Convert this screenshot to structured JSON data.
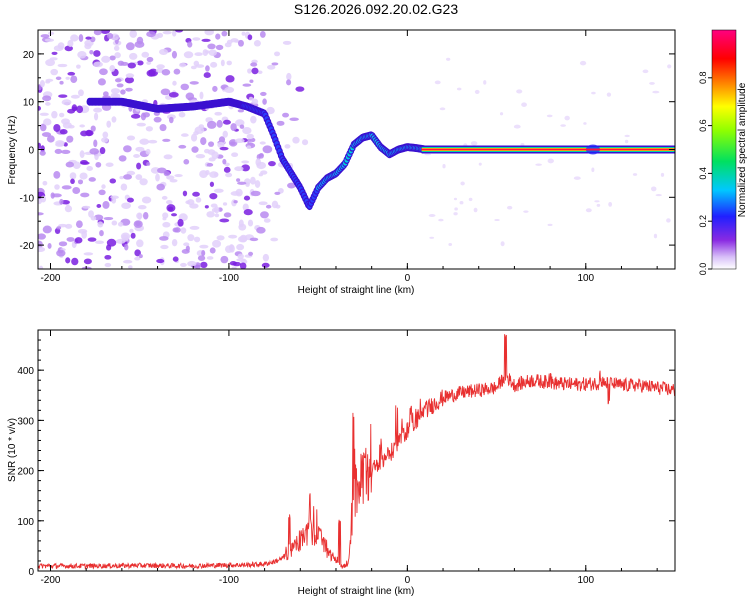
{
  "title": "S126.2026.092.20.02.G23",
  "chart_data": [
    {
      "type": "heatmap",
      "xlabel": "Height of straight line (km)",
      "ylabel": "Frequency (Hz)",
      "xlim": [
        -207,
        150
      ],
      "ylim": [
        -25,
        25
      ],
      "xticks": [
        -200,
        -100,
        0,
        100
      ],
      "yticks": [
        -20,
        -10,
        0,
        10,
        20
      ],
      "colorbar": {
        "label": "Normalized spectral amplitude",
        "range": [
          0,
          1
        ],
        "ticks": [
          "0.0",
          "0.2",
          "0.4",
          "0.6",
          "0.8"
        ],
        "colormap": [
          "#ffffff",
          "#c8a8f0",
          "#8a2be2",
          "#2020ff",
          "#00c8ff",
          "#00e060",
          "#90ff00",
          "#ffff00",
          "#ff8000",
          "#ff0000",
          "#ff0080"
        ]
      },
      "ridge": {
        "x": [
          -178,
          -160,
          -140,
          -120,
          -100,
          -90,
          -80,
          -75,
          -70,
          -65,
          -60,
          -55,
          -50,
          -45,
          -40,
          -35,
          -30,
          -25,
          -20,
          -15,
          -10,
          -5,
          0,
          5,
          10,
          60,
          100,
          150
        ],
        "freq": [
          10,
          10,
          8.5,
          9,
          10,
          9,
          7.5,
          3,
          -2,
          -5,
          -8,
          -12,
          -8,
          -6,
          -5,
          -3,
          1,
          2.5,
          3,
          0.5,
          -1,
          0,
          0.5,
          0.3,
          0,
          0,
          0,
          0
        ]
      },
      "tone_line": {
        "x_start": 8,
        "x_end": 150,
        "freq": 0
      }
    },
    {
      "type": "line",
      "xlabel": "Height of straight line (km)",
      "ylabel": "SNR (10 * v/v)",
      "xlim": [
        -207,
        150
      ],
      "ylim": [
        0,
        480
      ],
      "xticks": [
        -200,
        -100,
        0,
        100
      ],
      "yticks": [
        0,
        100,
        200,
        300,
        400
      ],
      "series": [
        {
          "name": "SNR",
          "color": "#e83030",
          "x": [
            -207,
            -180,
            -150,
            -120,
            -100,
            -90,
            -80,
            -75,
            -70,
            -65,
            -60,
            -55,
            -50,
            -45,
            -40,
            -36,
            -33,
            -31,
            -30,
            -28,
            -25,
            -20,
            -15,
            -10,
            -5,
            0,
            5,
            10,
            20,
            30,
            40,
            50,
            55,
            60,
            70,
            80,
            90,
            100,
            110,
            120,
            130,
            140,
            150
          ],
          "y": [
            10,
            10,
            11,
            10,
            12,
            12,
            14,
            18,
            25,
            40,
            60,
            80,
            70,
            40,
            20,
            8,
            15,
            90,
            150,
            170,
            180,
            200,
            215,
            230,
            260,
            280,
            300,
            320,
            345,
            355,
            360,
            365,
            390,
            370,
            380,
            375,
            372,
            372,
            375,
            370,
            370,
            365,
            360
          ],
          "spikes": [
            [
              -66,
              115
            ],
            [
              -55,
              155
            ],
            [
              -49,
              95
            ],
            [
              -38,
              105
            ],
            [
              -30,
              315
            ],
            [
              -24,
              235
            ],
            [
              -15,
              265
            ],
            [
              -6,
              340
            ],
            [
              2,
              330
            ],
            [
              55,
              475
            ],
            [
              80,
              395
            ],
            [
              108,
              400
            ],
            [
              113,
              340
            ]
          ]
        }
      ]
    }
  ]
}
